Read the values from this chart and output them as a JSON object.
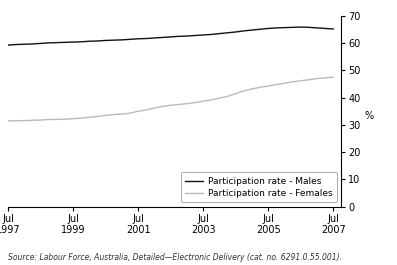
{
  "ylabel": "%",
  "source": "Source: Labour Force, Australia, Detailed—Electronic Delivery (cat. no. 6291.0.55.001).",
  "x_tick_years": [
    1997,
    1999,
    2001,
    2003,
    2005,
    2007
  ],
  "ylim": [
    0,
    70
  ],
  "yticks": [
    0,
    10,
    20,
    30,
    40,
    50,
    60,
    70
  ],
  "males_color": "#111111",
  "females_color": "#bbbbbb",
  "legend_labels": [
    "Participation rate - Males",
    "Participation rate - Females"
  ],
  "males_data": {
    "years": [
      1997.5,
      1997.75,
      1998.0,
      1998.25,
      1998.5,
      1998.75,
      1999.0,
      1999.25,
      1999.5,
      1999.75,
      2000.0,
      2000.25,
      2000.5,
      2000.75,
      2001.0,
      2001.25,
      2001.5,
      2001.75,
      2002.0,
      2002.25,
      2002.5,
      2002.75,
      2003.0,
      2003.25,
      2003.5,
      2003.75,
      2004.0,
      2004.25,
      2004.5,
      2004.75,
      2005.0,
      2005.25,
      2005.5,
      2005.75,
      2006.0,
      2006.25,
      2006.5,
      2006.75,
      2007.0,
      2007.25,
      2007.5
    ],
    "values": [
      59.3,
      59.5,
      59.6,
      59.7,
      59.9,
      60.1,
      60.2,
      60.3,
      60.4,
      60.5,
      60.7,
      60.8,
      61.0,
      61.1,
      61.2,
      61.4,
      61.6,
      61.7,
      61.9,
      62.1,
      62.3,
      62.5,
      62.6,
      62.8,
      63.0,
      63.2,
      63.5,
      63.8,
      64.1,
      64.5,
      64.8,
      65.1,
      65.4,
      65.6,
      65.7,
      65.8,
      65.9,
      65.8,
      65.6,
      65.4,
      65.2
    ]
  },
  "females_data": {
    "years": [
      1997.5,
      1997.75,
      1998.0,
      1998.25,
      1998.5,
      1998.75,
      1999.0,
      1999.25,
      1999.5,
      1999.75,
      2000.0,
      2000.25,
      2000.5,
      2000.75,
      2001.0,
      2001.25,
      2001.5,
      2001.75,
      2002.0,
      2002.25,
      2002.5,
      2002.75,
      2003.0,
      2003.25,
      2003.5,
      2003.75,
      2004.0,
      2004.25,
      2004.5,
      2004.75,
      2005.0,
      2005.25,
      2005.5,
      2005.75,
      2006.0,
      2006.25,
      2006.5,
      2006.75,
      2007.0,
      2007.25,
      2007.5
    ],
    "values": [
      31.5,
      31.5,
      31.6,
      31.7,
      31.8,
      32.0,
      32.0,
      32.1,
      32.3,
      32.5,
      32.8,
      33.1,
      33.5,
      33.8,
      34.0,
      34.3,
      35.0,
      35.5,
      36.2,
      36.8,
      37.2,
      37.5,
      37.8,
      38.2,
      38.7,
      39.2,
      39.8,
      40.5,
      41.5,
      42.5,
      43.2,
      43.8,
      44.3,
      44.8,
      45.3,
      45.8,
      46.2,
      46.6,
      47.0,
      47.3,
      47.5
    ]
  }
}
